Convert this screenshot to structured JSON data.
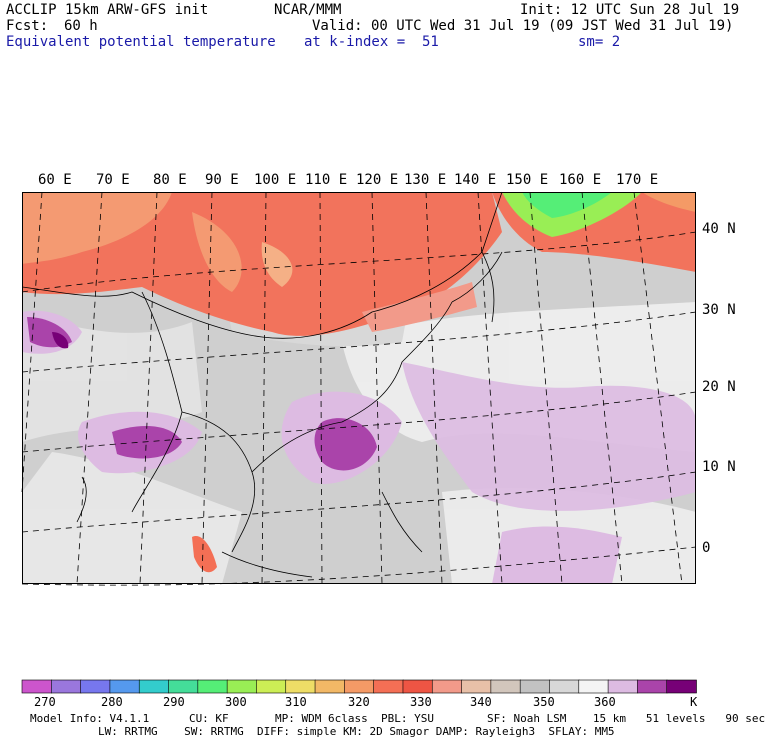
{
  "header": {
    "model": "ACCLIP 15km ARW-GFS init",
    "center": "NCAR/MMM",
    "init": "Init: 12 UTC Sun 28 Jul 19",
    "fcst_label": "Fcst:",
    "fcst_value": "60 h",
    "valid": "Valid: 00 UTC Wed 31 Jul 19 (09 JST Wed 31 Jul 19)",
    "field": "Equivalent potential temperature",
    "level": "at k-index =  51",
    "smooth": "sm= 2"
  },
  "map": {
    "lon_labels": [
      "60 E",
      "70 E",
      "80 E",
      "90 E",
      "100 E",
      "110 E",
      "120 E",
      "130 E",
      "140 E",
      "150 E",
      "160 E",
      "170 E"
    ],
    "lat_labels": [
      "40 N",
      "30 N",
      "20 N",
      "10 N",
      "0"
    ]
  },
  "colorbar": {
    "colors": [
      "#cc55cc",
      "#9a77dd",
      "#7777ee",
      "#5599ee",
      "#33cccc",
      "#44dd99",
      "#55ee77",
      "#99ee55",
      "#ccee55",
      "#eedd66",
      "#f2b866",
      "#f49a66",
      "#f46f55",
      "#ee5544",
      "#f29a8a",
      "#e8c0a8",
      "#d2c6bc",
      "#c2c2c2",
      "#d8d8d8",
      "#f4f4f4",
      "#ddbbe2",
      "#aa44aa",
      "#770077"
    ],
    "labels": [
      "270",
      "280",
      "290",
      "300",
      "310",
      "320",
      "330",
      "340",
      "350",
      "360"
    ],
    "unit": "K"
  },
  "model_info": {
    "line1": "Model Info: V4.1.1      CU: KF       MP: WDM 6class  PBL: YSU        SF: Noah LSM    15 km   51 levels   90 sec",
    "line2": "LW: RRTMG    SW: RRTMG  DIFF: simple KM: 2D Smagor DAMP: Rayleigh3  SFLAY: MM5"
  }
}
